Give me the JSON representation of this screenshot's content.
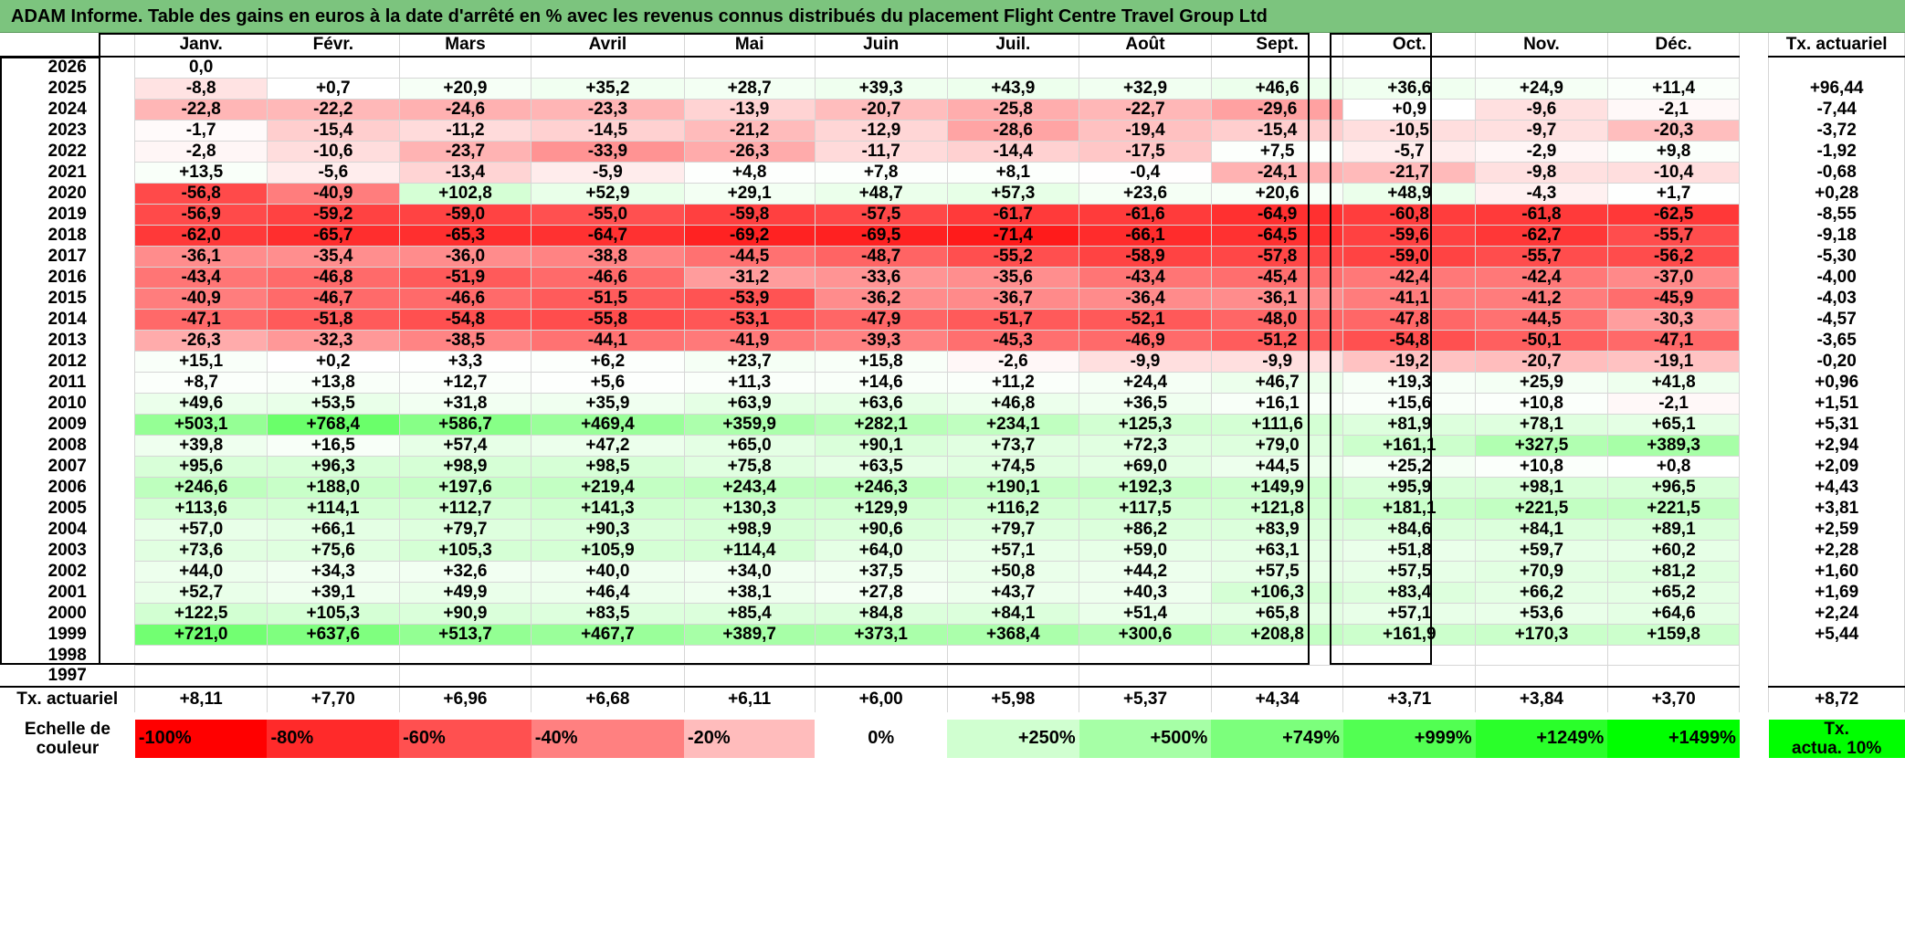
{
  "title": "ADAM Informe. Table des gains en euros à la date d'arrêté en % avec les revenus connus distribués du placement Flight Centre Travel Group Ltd",
  "chart_data": {
    "type": "table",
    "columns": [
      "Janv.",
      "Févr.",
      "Mars",
      "Avril",
      "Mai",
      "Juin",
      "Juil.",
      "Août",
      "Sept.",
      "Oct.",
      "Nov.",
      "Déc."
    ],
    "annual_header": "Tx. actuariel",
    "rows": [
      {
        "year": "2026",
        "values": [
          "0,0",
          "",
          "",
          "",
          "",
          "",
          "",
          "",
          "",
          "",
          "",
          ""
        ],
        "annual": ""
      },
      {
        "year": "2025",
        "values": [
          "-8,8",
          "+0,7",
          "+20,9",
          "+35,2",
          "+28,7",
          "+39,3",
          "+43,9",
          "+32,9",
          "+46,6",
          "+36,6",
          "+24,9",
          "+11,4"
        ],
        "annual": "+96,44"
      },
      {
        "year": "2024",
        "values": [
          "-22,8",
          "-22,2",
          "-24,6",
          "-23,3",
          "-13,9",
          "-20,7",
          "-25,8",
          "-22,7",
          "-29,6",
          "+0,9",
          "-9,6",
          "-2,1"
        ],
        "annual": "-7,44"
      },
      {
        "year": "2023",
        "values": [
          "-1,7",
          "-15,4",
          "-11,2",
          "-14,5",
          "-21,2",
          "-12,9",
          "-28,6",
          "-19,4",
          "-15,4",
          "-10,5",
          "-9,7",
          "-20,3"
        ],
        "annual": "-3,72"
      },
      {
        "year": "2022",
        "values": [
          "-2,8",
          "-10,6",
          "-23,7",
          "-33,9",
          "-26,3",
          "-11,7",
          "-14,4",
          "-17,5",
          "+7,5",
          "-5,7",
          "-2,9",
          "+9,8"
        ],
        "annual": "-1,92"
      },
      {
        "year": "2021",
        "values": [
          "+13,5",
          "-5,6",
          "-13,4",
          "-5,9",
          "+4,8",
          "+7,8",
          "+8,1",
          "-0,4",
          "-24,1",
          "-21,7",
          "-9,8",
          "-10,4"
        ],
        "annual": "-0,68"
      },
      {
        "year": "2020",
        "values": [
          "-56,8",
          "-40,9",
          "+102,8",
          "+52,9",
          "+29,1",
          "+48,7",
          "+57,3",
          "+23,6",
          "+20,6",
          "+48,9",
          "-4,3",
          "+1,7"
        ],
        "annual": "+0,28"
      },
      {
        "year": "2019",
        "values": [
          "-56,9",
          "-59,2",
          "-59,0",
          "-55,0",
          "-59,8",
          "-57,5",
          "-61,7",
          "-61,6",
          "-64,9",
          "-60,8",
          "-61,8",
          "-62,5"
        ],
        "annual": "-8,55"
      },
      {
        "year": "2018",
        "values": [
          "-62,0",
          "-65,7",
          "-65,3",
          "-64,7",
          "-69,2",
          "-69,5",
          "-71,4",
          "-66,1",
          "-64,5",
          "-59,6",
          "-62,7",
          "-55,7"
        ],
        "annual": "-9,18"
      },
      {
        "year": "2017",
        "values": [
          "-36,1",
          "-35,4",
          "-36,0",
          "-38,8",
          "-44,5",
          "-48,7",
          "-55,2",
          "-58,9",
          "-57,8",
          "-59,0",
          "-55,7",
          "-56,2"
        ],
        "annual": "-5,30"
      },
      {
        "year": "2016",
        "values": [
          "-43,4",
          "-46,8",
          "-51,9",
          "-46,6",
          "-31,2",
          "-33,6",
          "-35,6",
          "-43,4",
          "-45,4",
          "-42,4",
          "-42,4",
          "-37,0"
        ],
        "annual": "-4,00"
      },
      {
        "year": "2015",
        "values": [
          "-40,9",
          "-46,7",
          "-46,6",
          "-51,5",
          "-53,9",
          "-36,2",
          "-36,7",
          "-36,4",
          "-36,1",
          "-41,1",
          "-41,2",
          "-45,9"
        ],
        "annual": "-4,03"
      },
      {
        "year": "2014",
        "values": [
          "-47,1",
          "-51,8",
          "-54,8",
          "-55,8",
          "-53,1",
          "-47,9",
          "-51,7",
          "-52,1",
          "-48,0",
          "-47,8",
          "-44,5",
          "-30,3"
        ],
        "annual": "-4,57"
      },
      {
        "year": "2013",
        "values": [
          "-26,3",
          "-32,3",
          "-38,5",
          "-44,1",
          "-41,9",
          "-39,3",
          "-45,3",
          "-46,9",
          "-51,2",
          "-54,8",
          "-50,1",
          "-47,1"
        ],
        "annual": "-3,65"
      },
      {
        "year": "2012",
        "values": [
          "+15,1",
          "+0,2",
          "+3,3",
          "+6,2",
          "+23,7",
          "+15,8",
          "-2,6",
          "-9,9",
          "-9,9",
          "-19,2",
          "-20,7",
          "-19,1"
        ],
        "annual": "-0,20"
      },
      {
        "year": "2011",
        "values": [
          "+8,7",
          "+13,8",
          "+12,7",
          "+5,6",
          "+11,3",
          "+14,6",
          "+11,2",
          "+24,4",
          "+46,7",
          "+19,3",
          "+25,9",
          "+41,8"
        ],
        "annual": "+0,96"
      },
      {
        "year": "2010",
        "values": [
          "+49,6",
          "+53,5",
          "+31,8",
          "+35,9",
          "+63,9",
          "+63,6",
          "+46,8",
          "+36,5",
          "+16,1",
          "+15,6",
          "+10,8",
          "-2,1"
        ],
        "annual": "+1,51"
      },
      {
        "year": "2009",
        "values": [
          "+503,1",
          "+768,4",
          "+586,7",
          "+469,4",
          "+359,9",
          "+282,1",
          "+234,1",
          "+125,3",
          "+111,6",
          "+81,9",
          "+78,1",
          "+65,1"
        ],
        "annual": "+5,31"
      },
      {
        "year": "2008",
        "values": [
          "+39,8",
          "+16,5",
          "+57,4",
          "+47,2",
          "+65,0",
          "+90,1",
          "+73,7",
          "+72,3",
          "+79,0",
          "+161,1",
          "+327,5",
          "+389,3"
        ],
        "annual": "+2,94"
      },
      {
        "year": "2007",
        "values": [
          "+95,6",
          "+96,3",
          "+98,9",
          "+98,5",
          "+75,8",
          "+63,5",
          "+74,5",
          "+69,0",
          "+44,5",
          "+25,2",
          "+10,8",
          "+0,8"
        ],
        "annual": "+2,09"
      },
      {
        "year": "2006",
        "values": [
          "+246,6",
          "+188,0",
          "+197,6",
          "+219,4",
          "+243,4",
          "+246,3",
          "+190,1",
          "+192,3",
          "+149,9",
          "+95,9",
          "+98,1",
          "+96,5"
        ],
        "annual": "+4,43"
      },
      {
        "year": "2005",
        "values": [
          "+113,6",
          "+114,1",
          "+112,7",
          "+141,3",
          "+130,3",
          "+129,9",
          "+116,2",
          "+117,5",
          "+121,8",
          "+181,1",
          "+221,5",
          "+221,5"
        ],
        "annual": "+3,81"
      },
      {
        "year": "2004",
        "values": [
          "+57,0",
          "+66,1",
          "+79,7",
          "+90,3",
          "+98,9",
          "+90,6",
          "+79,7",
          "+86,2",
          "+83,9",
          "+84,6",
          "+84,1",
          "+89,1"
        ],
        "annual": "+2,59"
      },
      {
        "year": "2003",
        "values": [
          "+73,6",
          "+75,6",
          "+105,3",
          "+105,9",
          "+114,4",
          "+64,0",
          "+57,1",
          "+59,0",
          "+63,1",
          "+51,8",
          "+59,7",
          "+60,2"
        ],
        "annual": "+2,28"
      },
      {
        "year": "2002",
        "values": [
          "+44,0",
          "+34,3",
          "+32,6",
          "+40,0",
          "+34,0",
          "+37,5",
          "+50,8",
          "+44,2",
          "+57,5",
          "+57,5",
          "+70,9",
          "+81,2"
        ],
        "annual": "+1,60"
      },
      {
        "year": "2001",
        "values": [
          "+52,7",
          "+39,1",
          "+49,9",
          "+46,4",
          "+38,1",
          "+27,8",
          "+43,7",
          "+40,3",
          "+106,3",
          "+83,4",
          "+66,2",
          "+65,2"
        ],
        "annual": "+1,69"
      },
      {
        "year": "2000",
        "values": [
          "+122,5",
          "+105,3",
          "+90,9",
          "+83,5",
          "+85,4",
          "+84,8",
          "+84,1",
          "+51,4",
          "+65,8",
          "+57,1",
          "+53,6",
          "+64,6"
        ],
        "annual": "+2,24"
      },
      {
        "year": "1999",
        "values": [
          "+721,0",
          "+637,6",
          "+513,7",
          "+467,7",
          "+389,7",
          "+373,1",
          "+368,4",
          "+300,6",
          "+208,8",
          "+161,9",
          "+170,3",
          "+159,8"
        ],
        "annual": "+5,44"
      },
      {
        "year": "1998",
        "values": [
          "",
          "",
          "",
          "",
          "",
          "",
          "",
          "",
          "",
          "",
          "",
          ""
        ],
        "annual": ""
      },
      {
        "year": "1997",
        "values": [
          "",
          "",
          "",
          "",
          "",
          "",
          "",
          "",
          "",
          "",
          "",
          ""
        ],
        "annual": ""
      }
    ],
    "footer": {
      "label": "Tx. actuariel",
      "values": [
        "+8,11",
        "+7,70",
        "+6,96",
        "+6,68",
        "+6,11",
        "+6,00",
        "+5,98",
        "+5,37",
        "+4,34",
        "+3,71",
        "+3,84",
        "+3,70"
      ],
      "annual": "+8,72"
    },
    "legend": {
      "label_line1": "Echelle de",
      "label_line2": "couleur",
      "items": [
        {
          "text": "-100%",
          "color": "#ff0000",
          "align": "left"
        },
        {
          "text": "-80%",
          "color": "#ff2a2a",
          "align": "left"
        },
        {
          "text": "-60%",
          "color": "#ff5050",
          "align": "left"
        },
        {
          "text": "-40%",
          "color": "#ff8080",
          "align": "left"
        },
        {
          "text": "-20%",
          "color": "#ffbcbc",
          "align": "left"
        },
        {
          "text": "0%",
          "color": "#ffffff",
          "align": "center"
        },
        {
          "text": "+250%",
          "color": "#d0ffd0",
          "align": "right"
        },
        {
          "text": "+500%",
          "color": "#a6ffa6",
          "align": "right"
        },
        {
          "text": "+749%",
          "color": "#7cff7c",
          "align": "right"
        },
        {
          "text": "+999%",
          "color": "#52ff52",
          "align": "right"
        },
        {
          "text": "+1249%",
          "color": "#2aff2a",
          "align": "right"
        },
        {
          "text": "+1499%",
          "color": "#00ff00",
          "align": "right"
        }
      ],
      "annual_line1": "Tx.",
      "annual_line2": "actua. 10%",
      "annual_color": "#00ff00"
    }
  }
}
